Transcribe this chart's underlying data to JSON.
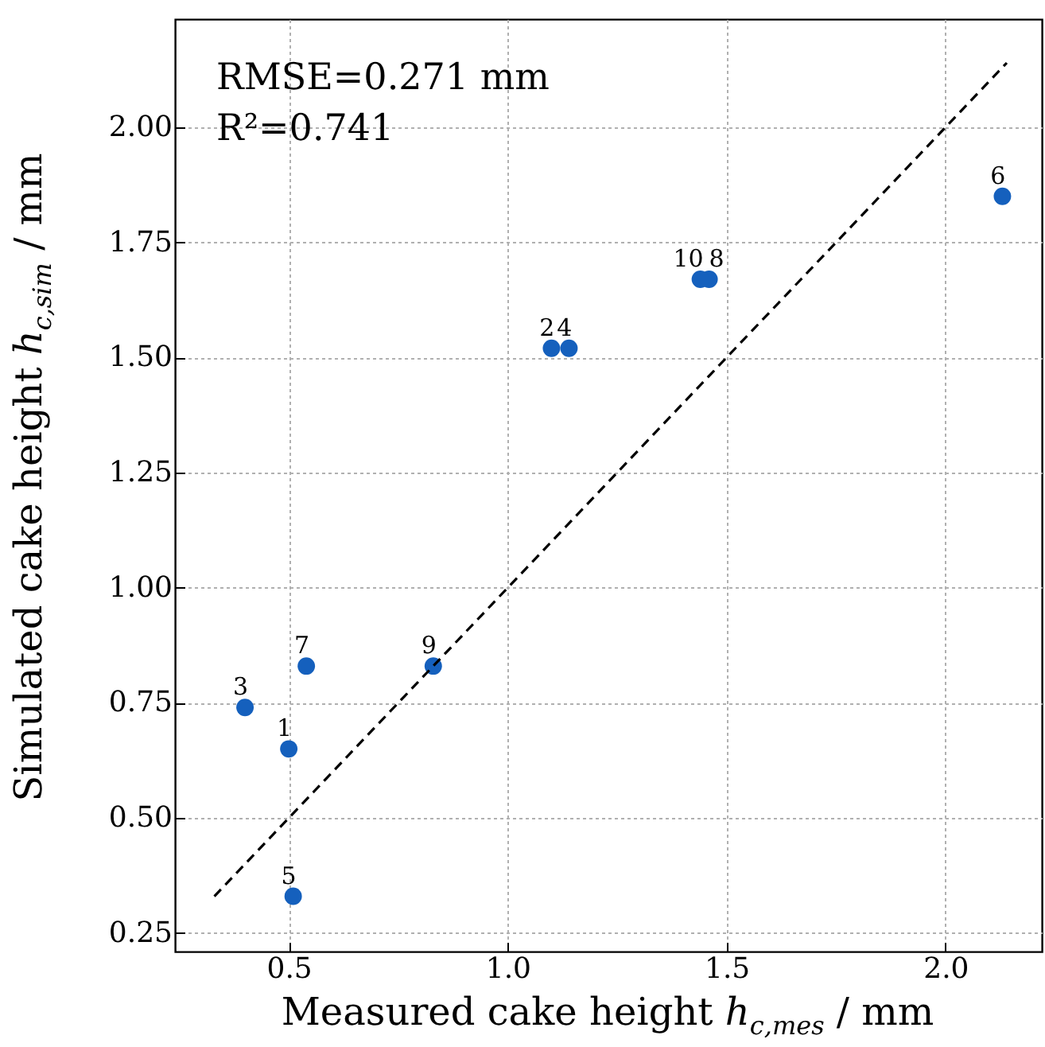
{
  "chart_data": {
    "type": "scatter",
    "xlabel": "Measured cake height h$_{c,mes}$ / mm",
    "ylabel": "Simulated cake height h$_{c,sim}$ / mm",
    "xlim": [
      0.24,
      2.22
    ],
    "ylim": [
      0.21,
      2.235
    ],
    "xticks": [
      0.5,
      {
        "value": 1,
        "label": "1.0"
      },
      1.5,
      {
        "value": 2,
        "label": "2.0"
      }
    ],
    "yticks": [
      0.25,
      {
        "value": 0.5,
        "label": "0.50"
      },
      0.75,
      {
        "value": 1,
        "label": "1.00"
      },
      1.25,
      {
        "value": 1.5,
        "label": "1.50"
      },
      1.75,
      {
        "value": 2,
        "label": "2.00"
      }
    ],
    "grid": true,
    "series": [
      {
        "color": "#1560bd",
        "marker": "circle",
        "x": [
          0.5,
          1.1,
          0.4,
          1.14,
          0.51,
          2.13,
          0.54,
          1.46,
          0.83,
          1.44
        ],
        "values": [
          0.65,
          1.52,
          0.74,
          1.52,
          0.33,
          1.85,
          0.83,
          1.67,
          0.83,
          1.67
        ]
      },
      {
        "type": "line",
        "color": "#000000",
        "line_style": "dashed",
        "marker": "none",
        "x": [
          0.33,
          2.14
        ],
        "values": [
          0.33,
          2.14
        ]
      }
    ],
    "annotations": [
      "RMSE=0.271 mm",
      "R²=0.741",
      {
        "text": "1",
        "x": 0.5,
        "y": 0.65
      },
      {
        "text": "2",
        "x": 1.1,
        "y": 1.52
      },
      {
        "text": "3",
        "x": 0.4,
        "y": 0.74
      },
      {
        "text": "4",
        "x": 1.14,
        "y": 1.52
      },
      {
        "text": "5",
        "x": 0.51,
        "y": 0.33
      },
      {
        "text": "6",
        "x": 2.13,
        "y": 1.85
      },
      {
        "text": "7",
        "x": 0.54,
        "y": 0.83
      },
      {
        "text": "8",
        "x": 1.46,
        "y": 1.67
      },
      {
        "text": "9",
        "x": 0.83,
        "y": 0.83
      },
      {
        "text": "10",
        "x": 1.44,
        "y": 1.67
      }
    ]
  }
}
